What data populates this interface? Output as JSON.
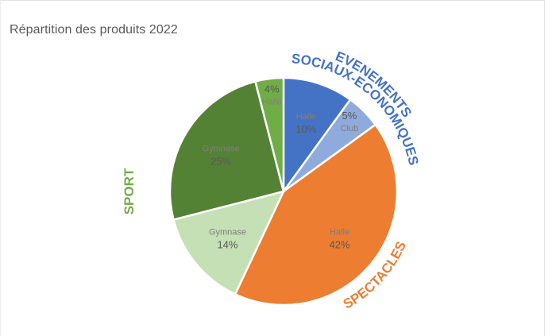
{
  "chart_data": {
    "type": "pie",
    "title": "Répartition des produits 2022",
    "slices": [
      {
        "label": "Halle",
        "value": 10,
        "percent_label": "10%",
        "color": "#4472c4",
        "group": "EVENEMENTS SOCIAUX-ECONOMIQUES"
      },
      {
        "label": "Club",
        "value": 5,
        "percent_label": "5%",
        "color": "#8faadc",
        "group": "EVENEMENTS SOCIAUX-ECONOMIQUES"
      },
      {
        "label": "Halle",
        "value": 42,
        "percent_label": "42%",
        "color": "#ed7d31",
        "group": "SPECTACLES"
      },
      {
        "label": "Gymnase",
        "value": 14,
        "percent_label": "14%",
        "color": "#c5e0b4",
        "group": "SPORT"
      },
      {
        "label": "Gymnase",
        "value": 25,
        "percent_label": "25%",
        "color": "#548235",
        "group": "SPORT"
      },
      {
        "label": "Halle",
        "value": 4,
        "percent_label": "4%",
        "color": "#70ad47",
        "group": "SPORT"
      }
    ],
    "group_labels": [
      {
        "lines": [
          "EVENEMENTS",
          "SOCIAUX-ECONOMIQUES"
        ],
        "color": "#4472c4"
      },
      {
        "lines": [
          "SPECTACLES"
        ],
        "color": "#ed7d31"
      },
      {
        "lines": [
          "SPORT"
        ],
        "color": "#70ad47"
      }
    ],
    "label_colors": {
      "category_text": "#7f7f7f",
      "percent_text": "#595959"
    }
  }
}
